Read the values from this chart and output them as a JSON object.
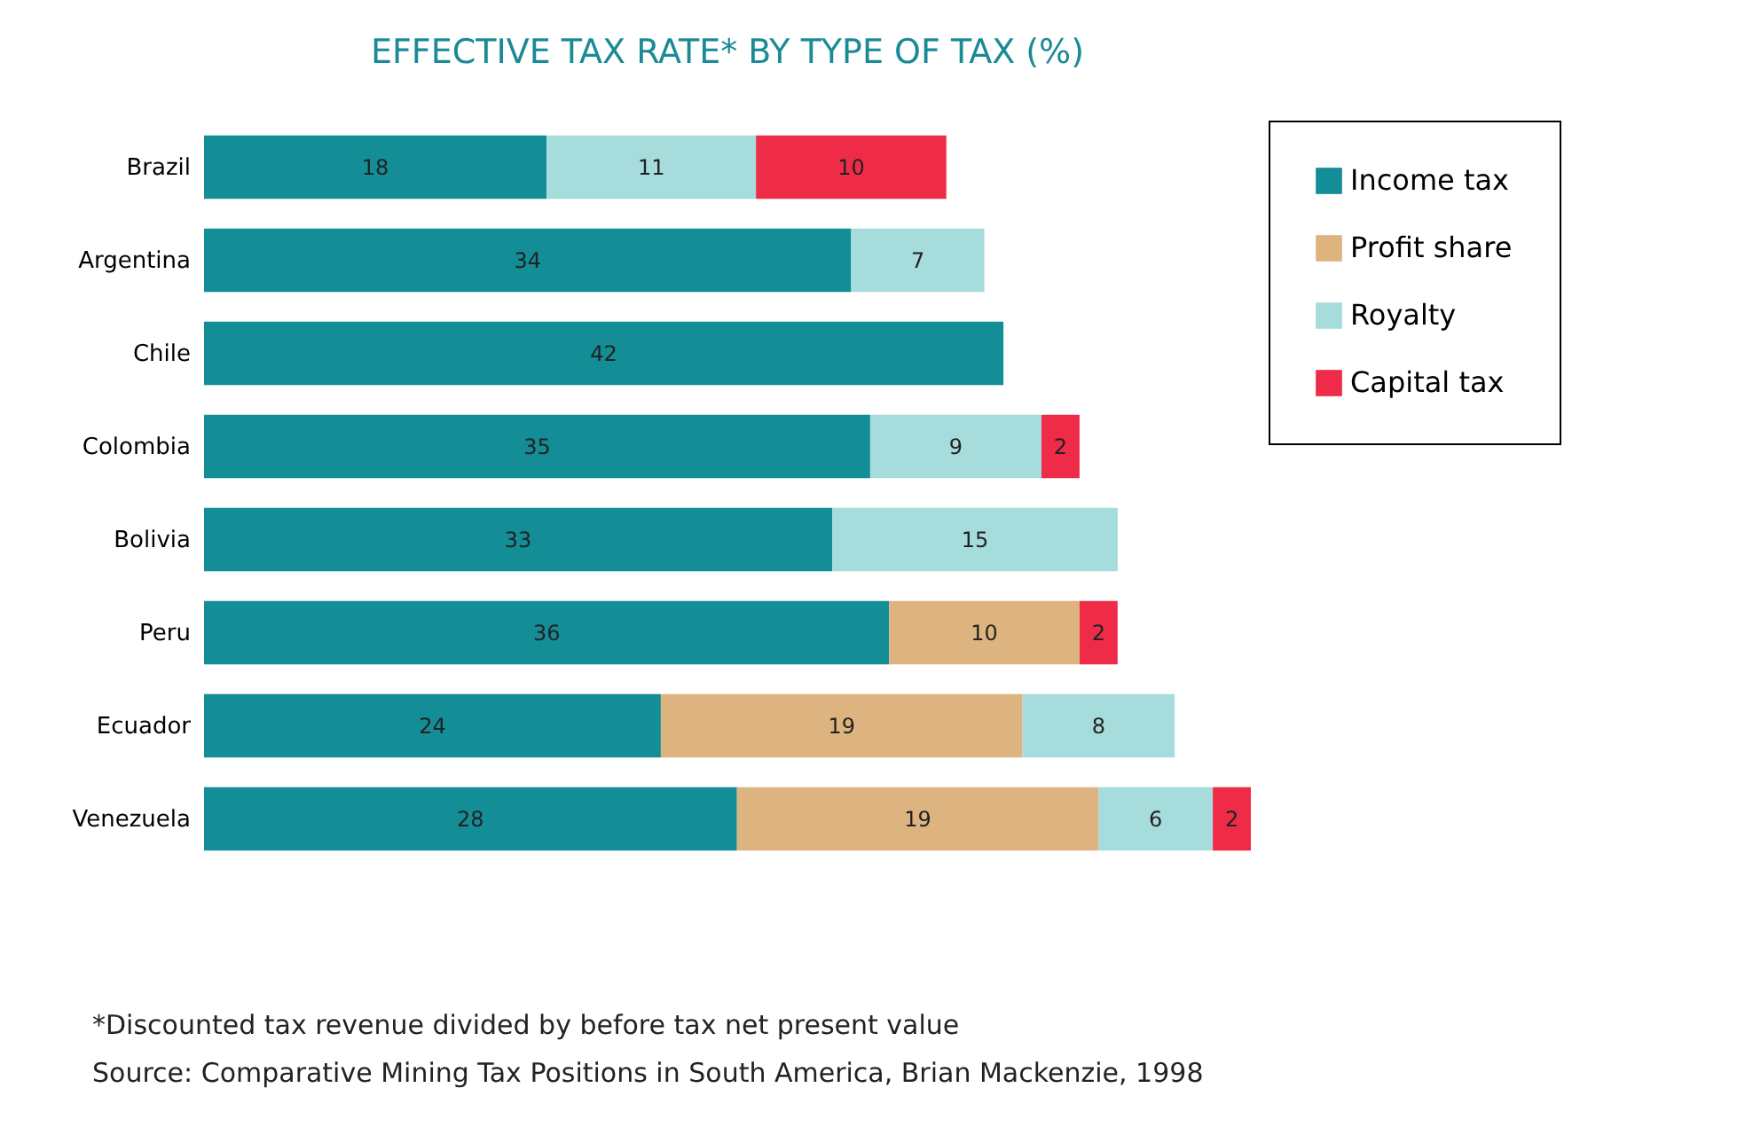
{
  "chart_data": {
    "type": "bar",
    "orientation": "horizontal",
    "stacked": true,
    "title": "EFFECTIVE TAX RATE* BY TYPE OF TAX  (%)",
    "categories": [
      "Brazil",
      "Argentina",
      "Chile",
      "Colombia",
      "Bolivia",
      "Peru",
      "Ecuador",
      "Venezuela"
    ],
    "series": [
      {
        "name": "Income tax",
        "color": "#138d96",
        "values": [
          18,
          34,
          42,
          35,
          33,
          36,
          24,
          28
        ]
      },
      {
        "name": "Profit share",
        "color": "#ddb47f",
        "values": [
          null,
          null,
          null,
          null,
          null,
          10,
          19,
          19
        ]
      },
      {
        "name": "Royalty",
        "color": "#a6dcdc",
        "values": [
          11,
          7,
          null,
          9,
          15,
          null,
          8,
          6
        ]
      },
      {
        "name": "Capital tax",
        "color": "#ee2c48",
        "values": [
          10,
          null,
          null,
          2,
          null,
          2,
          null,
          2
        ]
      }
    ],
    "data_labels": true,
    "legend": "right",
    "grid": false,
    "annotations": [
      "*Discounted tax revenue divided by before tax net present value",
      "Source: Comparative Mining Tax Positions in South America, Brian Mackenzie, 1998"
    ]
  }
}
